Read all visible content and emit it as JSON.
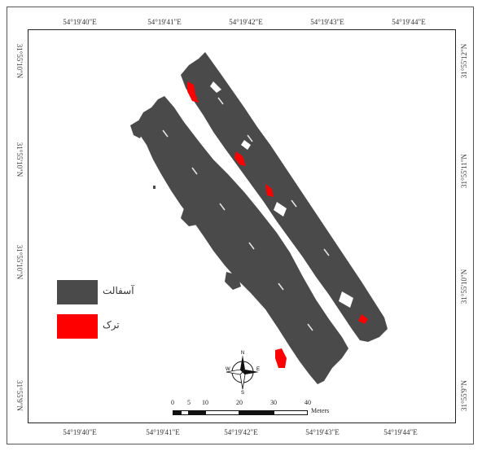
{
  "map": {
    "top_coords": [
      "54°19'40\"E",
      "54°19'41\"E",
      "54°19'42\"E",
      "54°19'43\"E",
      "54°19'44\"E"
    ],
    "bottom_coords": [
      "54°19'40\"E",
      "54°19'41\"E",
      "54°19'42\"E",
      "54°19'43\"E",
      "54°19'44\"E"
    ],
    "left_coords": [
      "31°55'10\"N",
      "31°55'10\"N",
      "31°55'10\"N",
      "31°55'9\"N"
    ],
    "right_coords": [
      "31°55'12\"N",
      "31°55'11\"N",
      "31°55'10\"N",
      "31°55'9\"N"
    ]
  },
  "legend": {
    "items": [
      {
        "label": "آسفالت",
        "color": "#4a4a4a"
      },
      {
        "label": "ترک",
        "color": "#ff0000"
      }
    ]
  },
  "scale": {
    "ticks": [
      "0",
      "5",
      "10",
      "20",
      "30",
      "40"
    ],
    "unit": "Meters"
  },
  "north_arrow": {
    "icon": "compass-rose-icon",
    "letters": [
      "N",
      "E",
      "S",
      "W"
    ]
  },
  "colors": {
    "asphalt": "#4a4a4a",
    "crack": "#ff0000",
    "frame": "#222222"
  }
}
